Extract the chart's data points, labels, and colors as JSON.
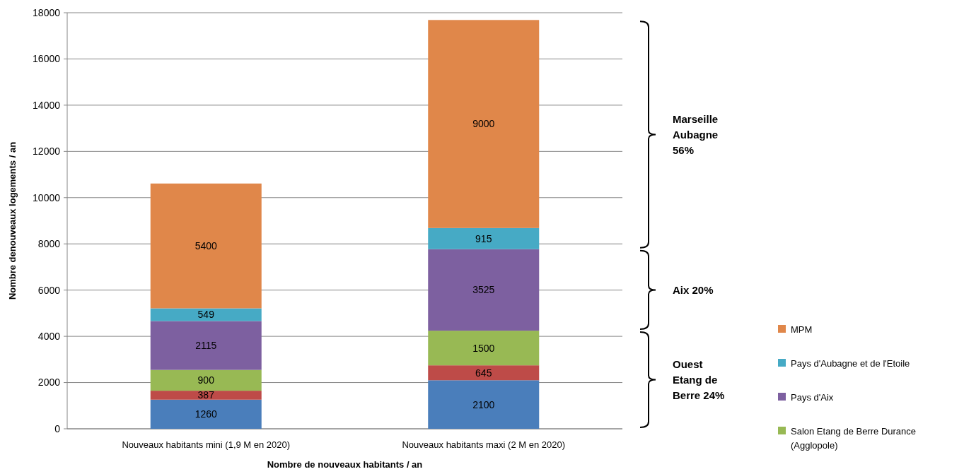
{
  "chart_data": {
    "type": "bar",
    "stacked": true,
    "xlabel": "Nombre de nouveaux habitants / an",
    "ylabel": "Nombre denouveaux logements / an",
    "categories": [
      "Nouveaux habitants mini (1,9 M en 2020)",
      "Nouveaux habitants maxi (2 M en 2020)"
    ],
    "series": [
      {
        "color": "#4a7ebb",
        "values": [
          1260,
          2100
        ]
      },
      {
        "color": "#be4b48",
        "values": [
          387,
          645
        ]
      },
      {
        "name": "Salon Etang de Berre Durance (Agglopole)",
        "color": "#98b954",
        "values": [
          900,
          1500
        ]
      },
      {
        "name": "Pays d'Aix",
        "color": "#7d60a0",
        "values": [
          2115,
          3525
        ]
      },
      {
        "name": "Pays d'Aubagne et de l'Etoile",
        "color": "#46aac5",
        "values": [
          549,
          915
        ]
      },
      {
        "name": "MPM",
        "color": "#e0874a",
        "values": [
          5400,
          9000
        ]
      }
    ],
    "ylim": [
      0,
      18000
    ],
    "yticks": [
      0,
      2000,
      4000,
      6000,
      8000,
      10000,
      12000,
      14000,
      16000,
      18000
    ],
    "grid": "y",
    "legend": "right",
    "data_labels": true,
    "annotations": [
      "Marseille Aubagne 56%",
      "Aix 20%",
      "Ouest Etang de Berre 24%"
    ]
  }
}
